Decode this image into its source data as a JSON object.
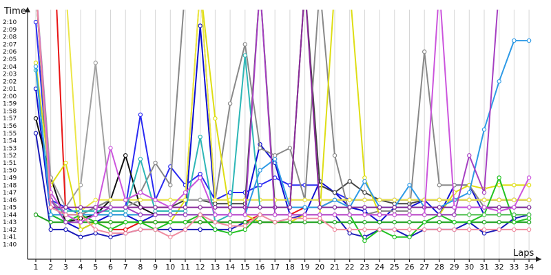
{
  "chart_data": {
    "type": "line",
    "xlabel": "Laps",
    "ylabel": "Time",
    "x": [
      1,
      2,
      3,
      4,
      5,
      6,
      7,
      8,
      9,
      10,
      11,
      12,
      13,
      14,
      15,
      16,
      17,
      18,
      19,
      20,
      21,
      22,
      23,
      24,
      25,
      26,
      27,
      28,
      29,
      30,
      31,
      32,
      33,
      34
    ],
    "y_ticks": [
      "1:40",
      "1:41",
      "1:42",
      "1:43",
      "1:44",
      "1:45",
      "1:46",
      "1:47",
      "1:48",
      "1:49",
      "1:50",
      "1:51",
      "1:52",
      "1:53",
      "1:54",
      "1:55",
      "1:56",
      "1:57",
      "1:58",
      "1:59",
      "2:00",
      "2:01",
      "2:02",
      "2:03",
      "2:04",
      "2:05",
      "2:06",
      "2:07",
      "2:08",
      "2:09",
      "2:10"
    ],
    "ylim_seconds": [
      99,
      133
    ],
    "grid": "vertical",
    "series": [
      {
        "color": "#e81414",
        "values": [
          300,
          150,
          104,
          104,
          103,
          102,
          102,
          103,
          103,
          103,
          103,
          103,
          103,
          103,
          103,
          104,
          104,
          104,
          105,
          105,
          106,
          106,
          106,
          106,
          106,
          106,
          106,
          106,
          106,
          106,
          106,
          106,
          106,
          106
        ]
      },
      {
        "color": "#1a1ab8",
        "values": [
          115,
          102,
          102,
          101,
          101.5,
          101,
          101.5,
          102,
          102,
          102,
          102,
          102,
          102,
          102,
          103,
          103,
          103,
          103.5,
          104,
          104,
          104,
          101.5,
          101,
          102,
          102,
          101,
          102,
          102,
          102,
          103,
          101.5,
          102,
          103.5,
          104
        ]
      },
      {
        "color": "#0f0fd0",
        "values": [
          121,
          104,
          103,
          102,
          103,
          104,
          104,
          103,
          104,
          104,
          104,
          129.5,
          105,
          105,
          105,
          113.5,
          111,
          104,
          104,
          108.5,
          107,
          105,
          104.5,
          103,
          105,
          105,
          106,
          104,
          108,
          108,
          104,
          104,
          104,
          104
        ]
      },
      {
        "color": "#2a2af2",
        "values": [
          130,
          106,
          105,
          104,
          105,
          105,
          105,
          117.5,
          106,
          110.5,
          108,
          109.5,
          106,
          107,
          107,
          108,
          109,
          108,
          108,
          108,
          107,
          106,
          106,
          106,
          106,
          106,
          106,
          106,
          106,
          106,
          106,
          106,
          106,
          106
        ]
      },
      {
        "color": "#101010",
        "values": [
          117,
          109,
          103,
          103.5,
          104,
          106,
          112,
          105,
          104,
          104,
          104,
          104,
          104,
          104,
          104,
          104,
          104,
          104,
          104,
          104,
          104,
          104,
          104,
          104,
          104,
          104,
          104,
          104,
          104,
          104,
          104,
          104,
          104,
          104
        ]
      },
      {
        "color": "#444444",
        "values": [
          300,
          105,
          104,
          104,
          105,
          106,
          106,
          105,
          105,
          105,
          106,
          106,
          105.5,
          105.5,
          105.5,
          300,
          105,
          105,
          300,
          108,
          107,
          108.5,
          107,
          106,
          105.5,
          105.5,
          106,
          106,
          106,
          106,
          106,
          106,
          106,
          106
        ]
      },
      {
        "color": "#888888",
        "values": [
          300,
          106,
          104,
          104,
          105,
          106,
          106,
          107,
          111,
          108,
          300,
          300,
          106,
          119,
          127,
          113,
          112,
          113,
          106,
          300,
          112,
          104,
          104,
          104.5,
          104.5,
          104.5,
          126,
          108,
          108,
          108,
          105,
          105,
          105,
          105
        ]
      },
      {
        "color": "#a0a0a0",
        "values": [
          300,
          109,
          105,
          108,
          124.5,
          105,
          105,
          106,
          106,
          106,
          106,
          106,
          106,
          106,
          106,
          106,
          106,
          106,
          106,
          106,
          106,
          106,
          106,
          106,
          106,
          106,
          106,
          106,
          106,
          106,
          106,
          106,
          106,
          106
        ]
      },
      {
        "color": "#c0c0c0",
        "values": [
          300,
          107,
          104,
          104,
          104,
          104,
          104,
          104,
          104,
          104,
          104,
          104,
          104,
          104,
          104,
          104,
          104,
          104,
          104,
          104,
          104,
          104,
          104,
          104,
          104,
          104,
          104,
          104,
          104,
          104,
          104,
          104,
          104,
          104
        ]
      },
      {
        "color": "#dede14",
        "values": [
          124.5,
          108,
          111,
          102,
          103,
          103,
          103,
          103,
          103,
          103,
          106,
          300,
          117,
          104,
          104,
          103,
          103,
          103,
          104,
          104,
          300,
          300,
          109,
          104,
          104,
          104,
          104,
          104,
          107,
          108,
          107.5,
          108,
          108,
          108
        ]
      },
      {
        "color": "#ece648",
        "values": [
          300,
          300,
          300,
          104.5,
          106,
          106,
          106,
          106,
          106,
          106,
          106,
          300,
          106,
          106,
          106,
          106,
          106,
          106,
          106,
          106,
          106,
          106,
          106,
          106,
          106,
          106,
          106,
          106,
          106,
          106,
          106,
          106,
          106,
          106
        ]
      },
      {
        "color": "#1aa01a",
        "values": [
          104,
          103,
          103,
          103,
          103,
          103,
          103,
          103,
          103,
          103,
          103,
          103,
          103,
          103,
          103,
          103,
          103,
          103,
          103,
          103,
          103,
          103,
          103,
          103,
          103,
          103,
          103,
          103,
          103,
          103,
          103,
          103,
          103,
          103
        ]
      },
      {
        "color": "#22c222",
        "values": [
          300,
          104,
          103,
          104,
          103,
          102,
          103,
          103,
          102,
          103,
          103,
          104,
          102,
          101.5,
          102,
          104,
          104,
          104,
          104,
          104,
          104,
          104,
          100.5,
          102,
          101,
          101,
          103,
          104,
          103,
          103,
          104,
          109,
          103,
          103.5
        ]
      },
      {
        "color": "#55cc55",
        "values": [
          300,
          104,
          104,
          104,
          104,
          104,
          104,
          104,
          104,
          104,
          104,
          104,
          104,
          104,
          104,
          104,
          104,
          104,
          104,
          104,
          104,
          104,
          104,
          104,
          104,
          104,
          104,
          104,
          104,
          104,
          104,
          104,
          104,
          104
        ]
      },
      {
        "color": "#2db6b6",
        "values": [
          123.5,
          105,
          104.5,
          104.5,
          104.5,
          104.5,
          104.5,
          111.5,
          104.5,
          104.5,
          104.5,
          114.5,
          103,
          104,
          125.5,
          105,
          105,
          105,
          105,
          105,
          105,
          105,
          105,
          105,
          105,
          105,
          105,
          105,
          105,
          105,
          105,
          105,
          105,
          105
        ]
      },
      {
        "color": "#2e9ae6",
        "values": [
          124,
          104,
          104,
          104,
          104,
          104,
          104,
          104,
          104,
          104,
          104,
          104,
          104,
          104,
          104,
          110,
          111.5,
          105,
          105,
          105,
          106,
          105,
          108.5,
          105,
          105,
          108,
          105,
          105,
          106,
          107,
          115.5,
          122,
          127.5,
          127.5
        ]
      },
      {
        "color": "#8a2a9a",
        "values": [
          300,
          105,
          105,
          105,
          105,
          105,
          105,
          105,
          105,
          105,
          105,
          105,
          105,
          105,
          105,
          105,
          105,
          105,
          300,
          105,
          105,
          105,
          105,
          105,
          105,
          105,
          105,
          105,
          105,
          105,
          105,
          105,
          105,
          105
        ]
      },
      {
        "color": "#a640c2",
        "values": [
          300,
          106,
          103,
          103,
          104,
          105,
          105,
          104,
          104,
          104,
          104,
          104,
          104,
          104,
          104,
          300,
          104,
          104,
          104,
          104,
          104,
          104,
          104,
          104,
          104,
          104,
          104,
          104,
          104,
          112,
          107,
          300,
          300,
          300
        ]
      },
      {
        "color": "#cc55dd",
        "values": [
          300,
          107,
          104,
          103,
          104,
          113,
          106,
          107,
          106,
          105,
          107,
          109,
          104,
          104,
          104,
          104,
          104,
          104,
          104,
          104,
          104,
          104,
          104,
          104,
          104,
          104,
          104,
          300,
          105,
          105,
          105,
          104.5,
          105,
          109
        ]
      },
      {
        "color": "#f08ca0",
        "values": [
          300,
          105,
          104,
          104,
          102,
          101.5,
          101.5,
          102,
          102,
          101,
          102,
          104,
          103,
          102.5,
          102.5,
          104,
          103,
          103.5,
          103.5,
          103.5,
          102,
          102,
          102,
          102,
          102,
          102,
          102,
          102,
          102,
          102,
          102,
          102,
          102,
          102
        ]
      }
    ]
  }
}
